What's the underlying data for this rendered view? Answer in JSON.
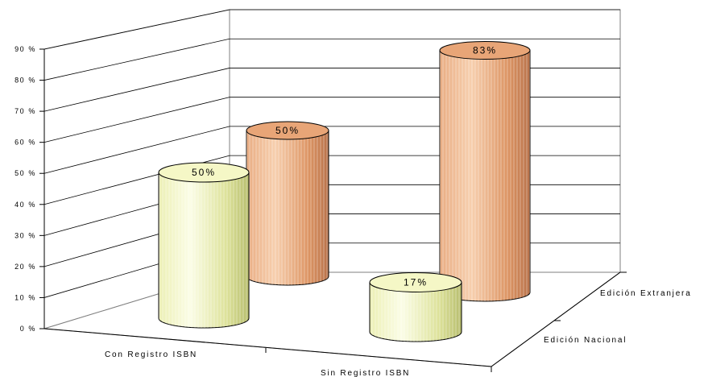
{
  "chart_data": {
    "type": "bar",
    "style": "3d-cylinder",
    "categories": [
      "Con Registro ISBN",
      "Sin Registro ISBN"
    ],
    "series": [
      {
        "name": "Edición Nacional",
        "values": [
          50,
          17
        ],
        "labels": [
          "50%",
          "17%"
        ],
        "color": "#f5f7c6"
      },
      {
        "name": "Edición Extranjera",
        "values": [
          50,
          83
        ],
        "labels": [
          "50%",
          "83%"
        ],
        "color": "#e8a577"
      }
    ],
    "ylim": [
      0,
      90
    ],
    "yticks": [
      "0 %",
      "10 %",
      "20 %",
      "30 %",
      "40 %",
      "50 %",
      "60 %",
      "70 %",
      "80 %",
      "90 %"
    ],
    "grid": true,
    "legend": "none"
  }
}
